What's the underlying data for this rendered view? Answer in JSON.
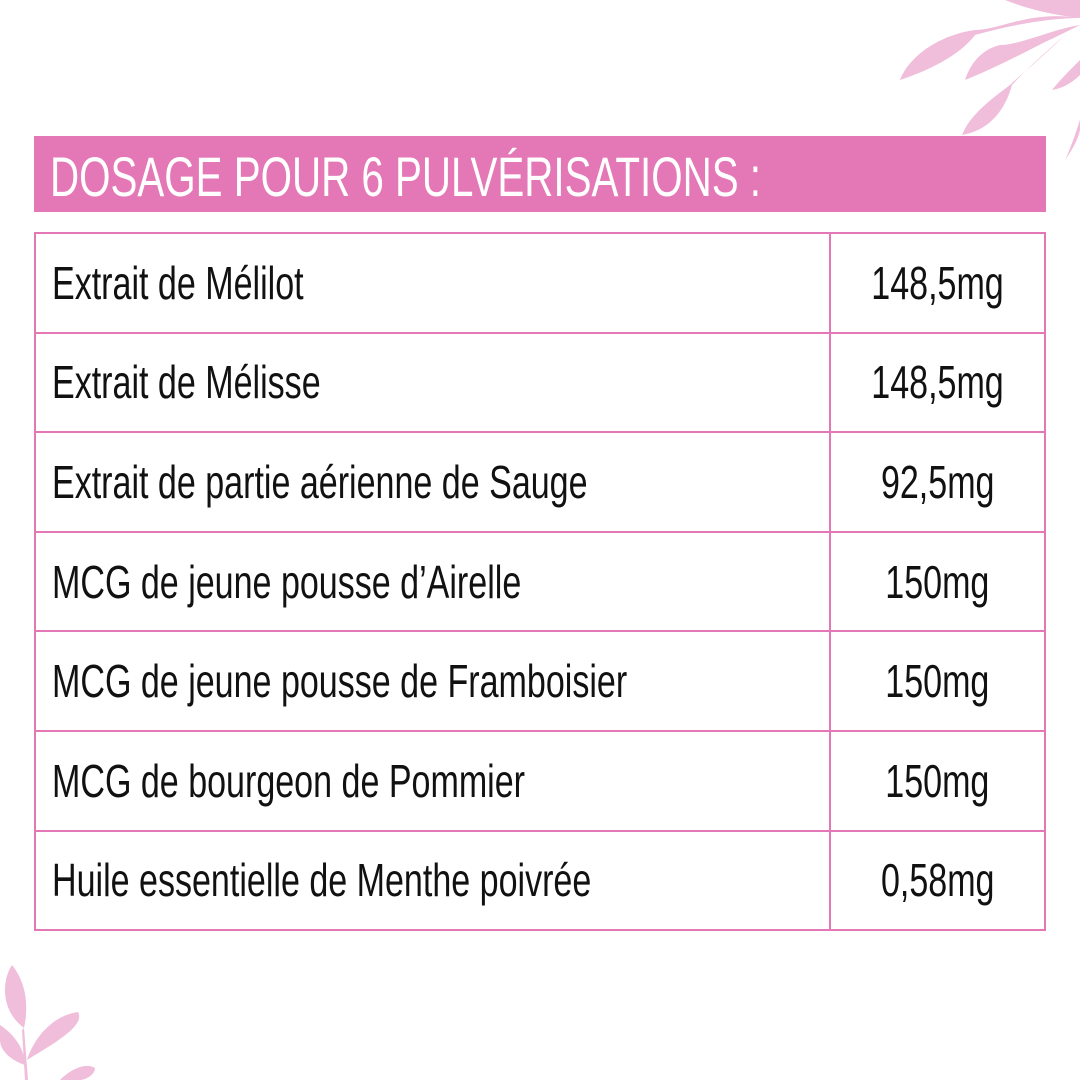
{
  "title": "DOSAGE POUR 6 PULVÉRISATIONS :",
  "colors": {
    "accent": "#e477b6",
    "leaf": "#f0bddb"
  },
  "rows": [
    {
      "ingredient": "Extrait de Mélilot",
      "dose": "148,5mg"
    },
    {
      "ingredient": "Extrait de Mélisse",
      "dose": "148,5mg"
    },
    {
      "ingredient": "Extrait de partie aérienne de Sauge",
      "dose": "92,5mg"
    },
    {
      "ingredient": "MCG de jeune pousse d’Airelle",
      "dose": "150mg"
    },
    {
      "ingredient": "MCG de jeune pousse de Framboisier",
      "dose": "150mg"
    },
    {
      "ingredient": "MCG de bourgeon de Pommier",
      "dose": "150mg"
    },
    {
      "ingredient": "Huile essentielle de Menthe poivrée",
      "dose": "0,58mg"
    }
  ]
}
